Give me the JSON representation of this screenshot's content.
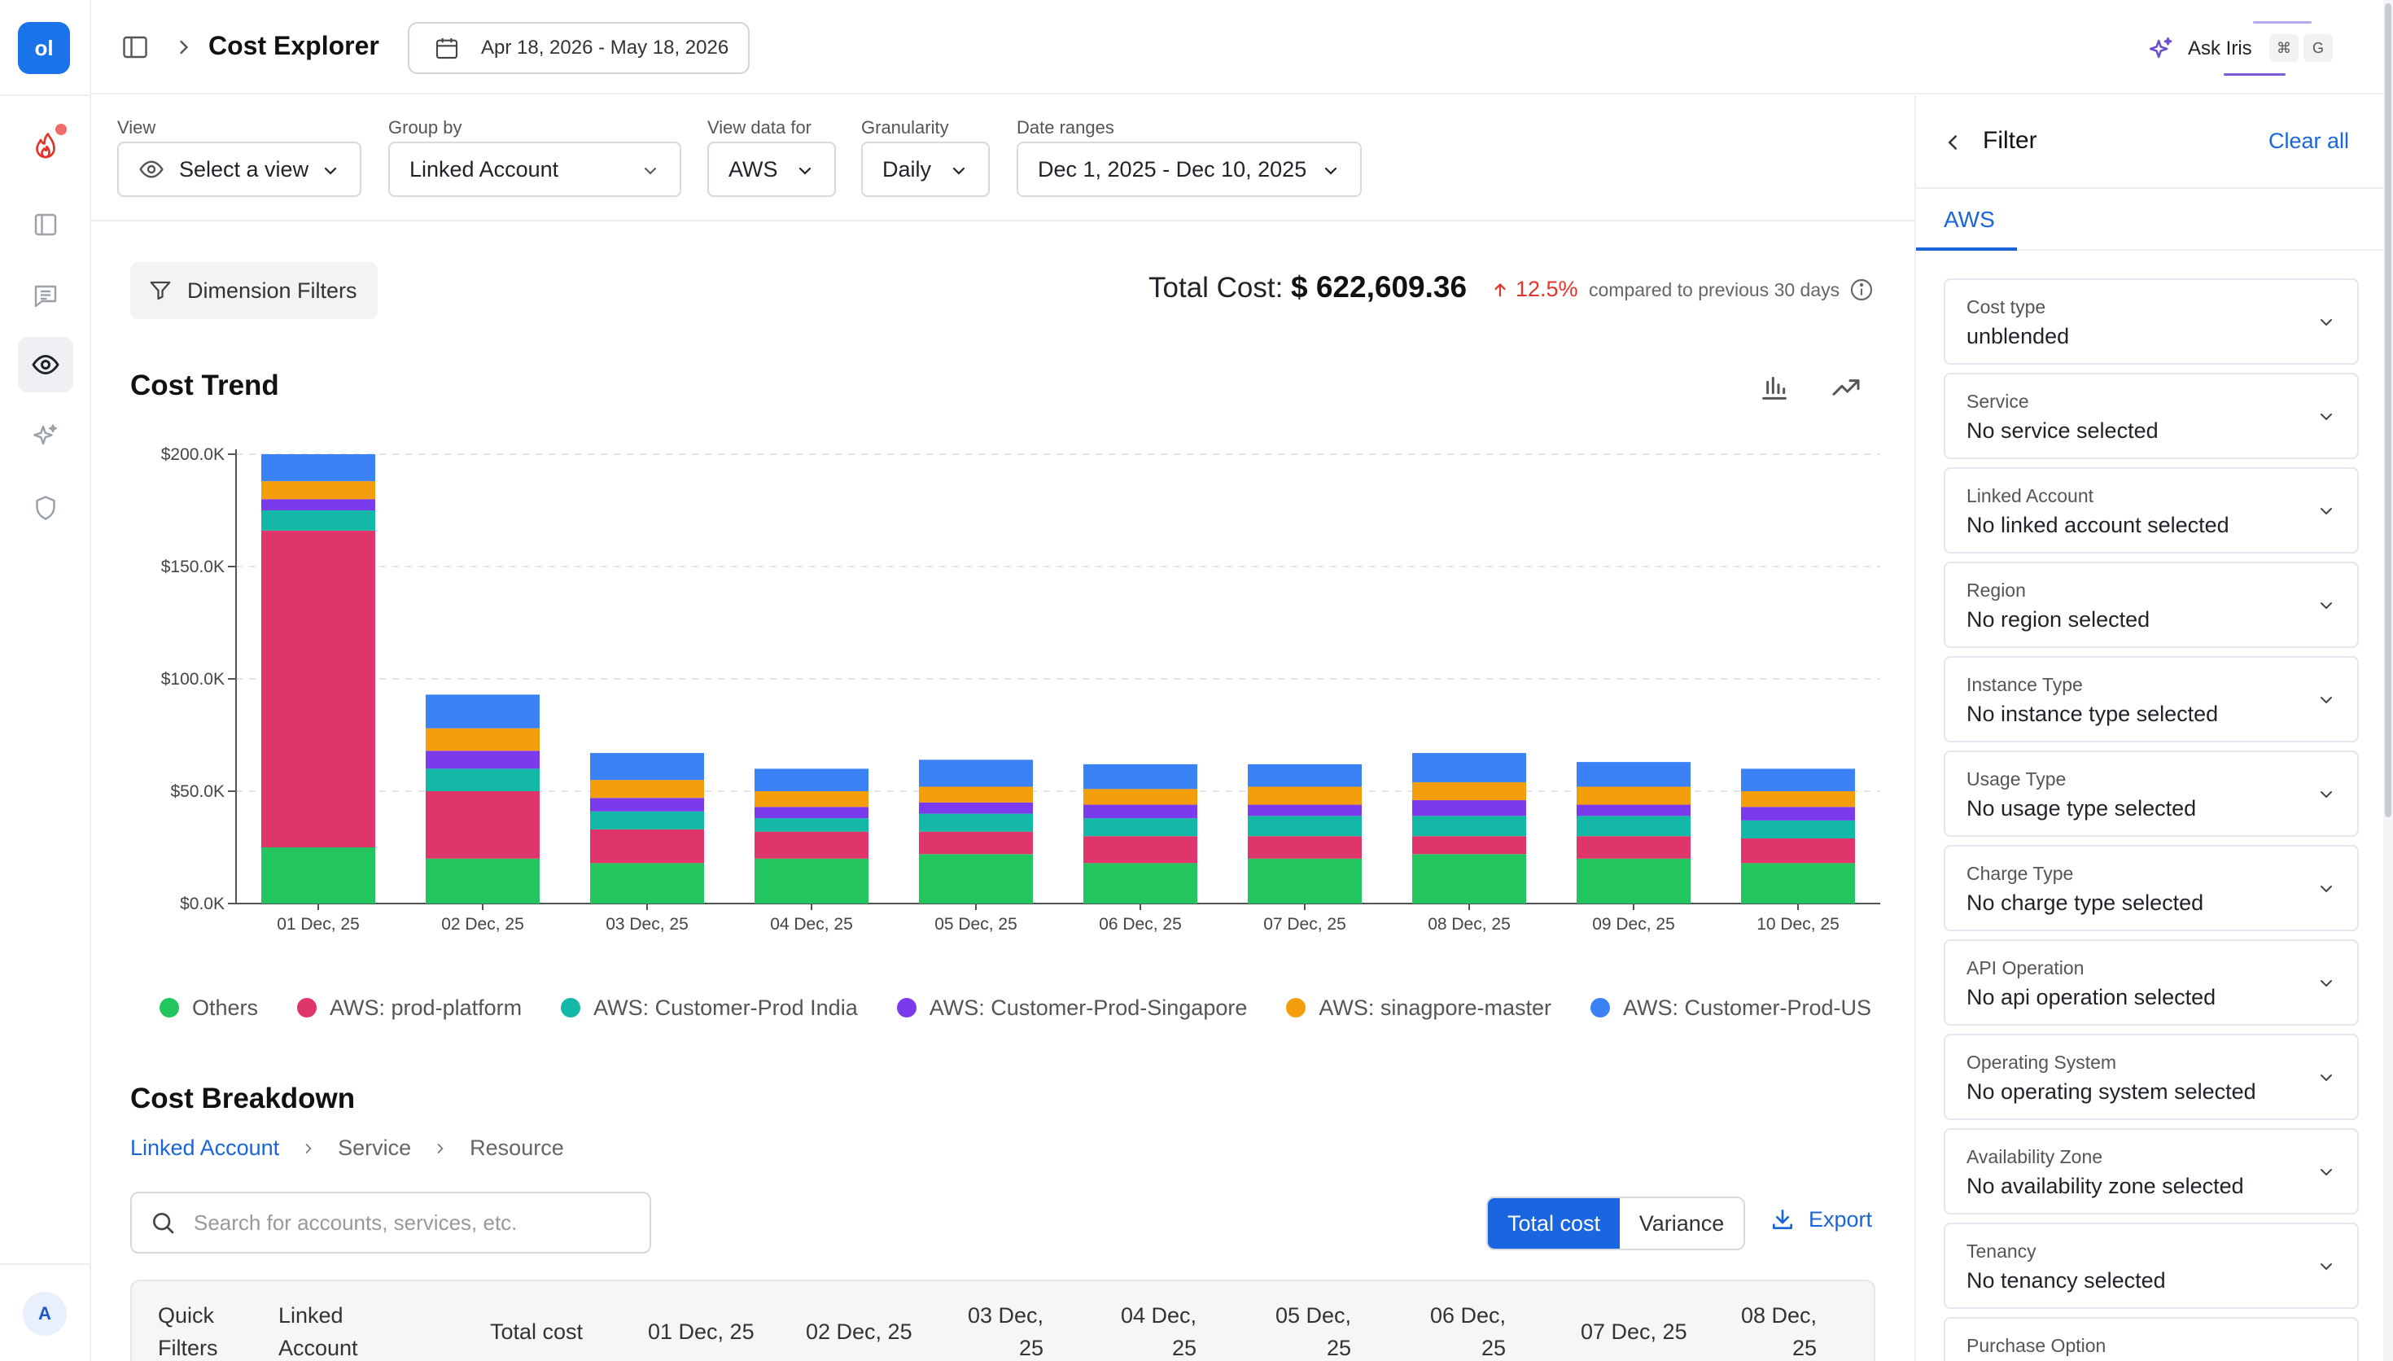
{
  "app": {
    "logo_text": "ol",
    "avatar_initial": "A",
    "brand_color": "#1a73e8"
  },
  "header": {
    "title": "Cost Explorer",
    "date_range": "Apr 18, 2026 - May 18, 2026",
    "ask_iris": "Ask Iris",
    "kbd_cmd": "⌘",
    "kbd_g": "G"
  },
  "toolbar": {
    "view_label": "View",
    "view_value": "Select a view",
    "group_label": "Group by",
    "group_value": "Linked Account",
    "viewdata_label": "View data for",
    "viewdata_value": "AWS",
    "gran_label": "Granularity",
    "gran_value": "Daily",
    "daterange_label": "Date ranges",
    "daterange_value": "Dec 1, 2025 - Dec 10, 2025"
  },
  "summary": {
    "dimension_filters": "Dimension Filters",
    "total_label": "Total Cost:",
    "total_value": "$ 622,609.36",
    "change_pct": "12.5%",
    "compare_text": "compared to previous 30 days"
  },
  "cost_trend": {
    "title": "Cost Trend"
  },
  "chart_data": {
    "type": "bar",
    "stacked": true,
    "categories": [
      "01 Dec, 25",
      "02 Dec, 25",
      "03 Dec, 25",
      "04 Dec, 25",
      "05 Dec, 25",
      "06 Dec, 25",
      "07 Dec, 25",
      "08 Dec, 25",
      "09 Dec, 25",
      "10 Dec, 25"
    ],
    "y_ticks": [
      "$0.0K",
      "$50.0K",
      "$100.0K",
      "$150.0K",
      "$200.0K"
    ],
    "ylim": [
      0,
      200000
    ],
    "grid": true,
    "legend_position": "bottom",
    "series": [
      {
        "name": "Others",
        "color": "#22c55e",
        "values": [
          25000,
          20000,
          18000,
          20000,
          22000,
          18000,
          20000,
          22000,
          20000,
          18000
        ]
      },
      {
        "name": "AWS: prod-platform",
        "color": "#e0356b",
        "values": [
          141000,
          30000,
          15000,
          12000,
          10000,
          12000,
          10000,
          8000,
          10000,
          11000
        ]
      },
      {
        "name": "AWS: Customer-Prod India",
        "color": "#14b8a6",
        "values": [
          9000,
          10000,
          8000,
          6000,
          8000,
          8000,
          9000,
          9000,
          9000,
          8000
        ]
      },
      {
        "name": "AWS: Customer-Prod-Singapore",
        "color": "#7c3aed",
        "values": [
          5000,
          8000,
          6000,
          5000,
          5000,
          6000,
          5000,
          7000,
          5000,
          6000
        ]
      },
      {
        "name": "AWS: sinagpore-master",
        "color": "#f59e0b",
        "values": [
          8000,
          10000,
          8000,
          7000,
          7000,
          7000,
          8000,
          8000,
          8000,
          7000
        ]
      },
      {
        "name": "AWS: Customer-Prod-US",
        "color": "#3b82f6",
        "values": [
          12000,
          15000,
          12000,
          10000,
          12000,
          11000,
          10000,
          13000,
          11000,
          10000
        ]
      }
    ]
  },
  "breakdown": {
    "title": "Cost Breakdown",
    "crumbs": [
      "Linked Account",
      "Service",
      "Resource"
    ],
    "search_placeholder": "Search for accounts, services, etc.",
    "seg_total": "Total cost",
    "seg_variance": "Variance",
    "export": "Export",
    "columns": [
      "Quick Filters",
      "Linked Account",
      "Total cost",
      "01 Dec, 25",
      "02 Dec, 25",
      "03 Dec, 25",
      "04 Dec, 25",
      "05 Dec, 25",
      "06 Dec, 25",
      "07 Dec, 25",
      "08 Dec, 25"
    ]
  },
  "filter_panel": {
    "title": "Filter",
    "clear_all": "Clear all",
    "tab": "AWS",
    "filters": [
      {
        "label": "Cost type",
        "value": "unblended"
      },
      {
        "label": "Service",
        "value": "No service selected"
      },
      {
        "label": "Linked Account",
        "value": "No linked account selected"
      },
      {
        "label": "Region",
        "value": "No region selected"
      },
      {
        "label": "Instance Type",
        "value": "No instance type selected"
      },
      {
        "label": "Usage Type",
        "value": "No usage type selected"
      },
      {
        "label": "Charge Type",
        "value": "No charge type selected"
      },
      {
        "label": "API Operation",
        "value": "No api operation selected"
      },
      {
        "label": "Operating System",
        "value": "No operating system selected"
      },
      {
        "label": "Availability Zone",
        "value": "No availability zone selected"
      },
      {
        "label": "Tenancy",
        "value": "No tenancy selected"
      },
      {
        "label": "Purchase Option",
        "value": ""
      }
    ]
  }
}
